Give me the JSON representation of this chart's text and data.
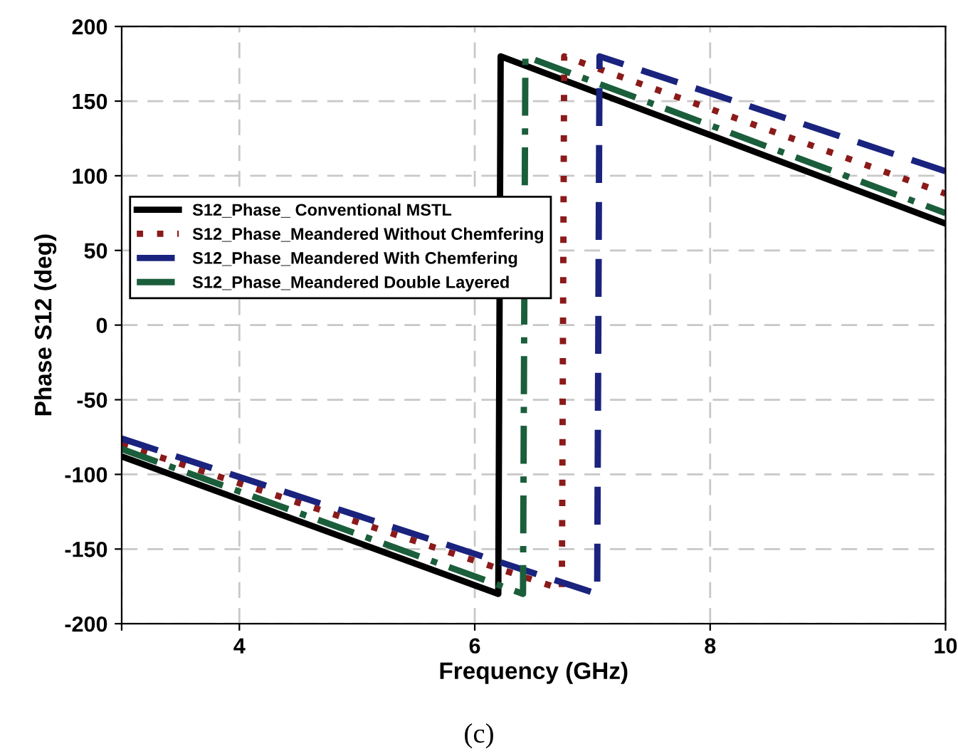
{
  "chart_data": {
    "type": "line",
    "xlabel": "Frequency (GHz)",
    "ylabel": "Phase S12 (deg)",
    "xlim": [
      3,
      10
    ],
    "ylim": [
      -200,
      200
    ],
    "xticks": [
      {
        "value": 3,
        "label": null
      },
      4,
      6,
      8,
      {
        "value": 10,
        "label": "10"
      }
    ],
    "yticks": [
      -200,
      -150,
      -100,
      -50,
      0,
      50,
      100,
      150,
      200
    ],
    "grid": true,
    "legend": "left",
    "marker": "none",
    "series": [
      {
        "name": "S12_Phase_ Conventional MSTL",
        "color": "#000000",
        "line_style": "solid",
        "x": [
          3,
          6.2,
          6.22,
          10
        ],
        "values": [
          -88,
          -180,
          180,
          68
        ]
      },
      {
        "name": "S12_Phase_Meandered Without Chemfering",
        "color": "#8b1a1a",
        "line_style": "dotted",
        "x": [
          3,
          6.74,
          6.76,
          10
        ],
        "values": [
          -80,
          -177,
          180,
          88
        ]
      },
      {
        "name": "S12_Phase_Meandered With Chemfering",
        "color": "#1a237e",
        "line_style": "dashed",
        "x": [
          3,
          7.04,
          7.06,
          10
        ],
        "values": [
          -76,
          -180,
          180,
          103
        ]
      },
      {
        "name": "S12_Phase_Meandered Double Layered",
        "color": "#1b5e3b",
        "line_style": "dashdot",
        "x": [
          3,
          6.41,
          6.43,
          10
        ],
        "values": [
          -83,
          -180,
          180,
          75
        ]
      }
    ],
    "annotations": [
      "(c)"
    ]
  }
}
